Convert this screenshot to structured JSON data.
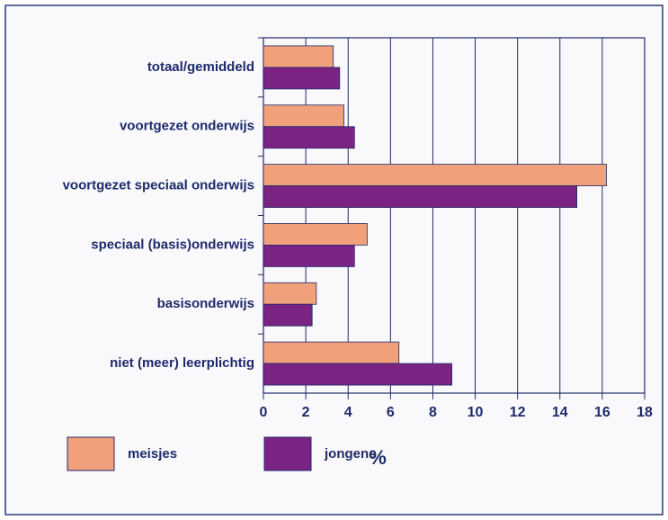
{
  "chart_data": {
    "type": "hbar",
    "categories": [
      "totaal/gemiddeld",
      "voortgezet onderwijs",
      "voortgezet speciaal onderwijs",
      "speciaal (basis)onderwijs",
      "basisonderwijs",
      "niet (meer) leerplichtig"
    ],
    "series": [
      {
        "name": "meisjes",
        "color": "#f0a07a",
        "values": [
          3.3,
          3.8,
          16.2,
          4.9,
          2.5,
          6.4
        ]
      },
      {
        "name": "jongens",
        "color": "#7b2382",
        "values": [
          3.6,
          4.3,
          14.8,
          4.3,
          2.3,
          8.9
        ]
      }
    ],
    "xlabel": "%",
    "xlim": [
      0,
      18
    ],
    "xticks": [
      0,
      2,
      4,
      6,
      8,
      10,
      12,
      14,
      16,
      18
    ],
    "grid": true
  }
}
